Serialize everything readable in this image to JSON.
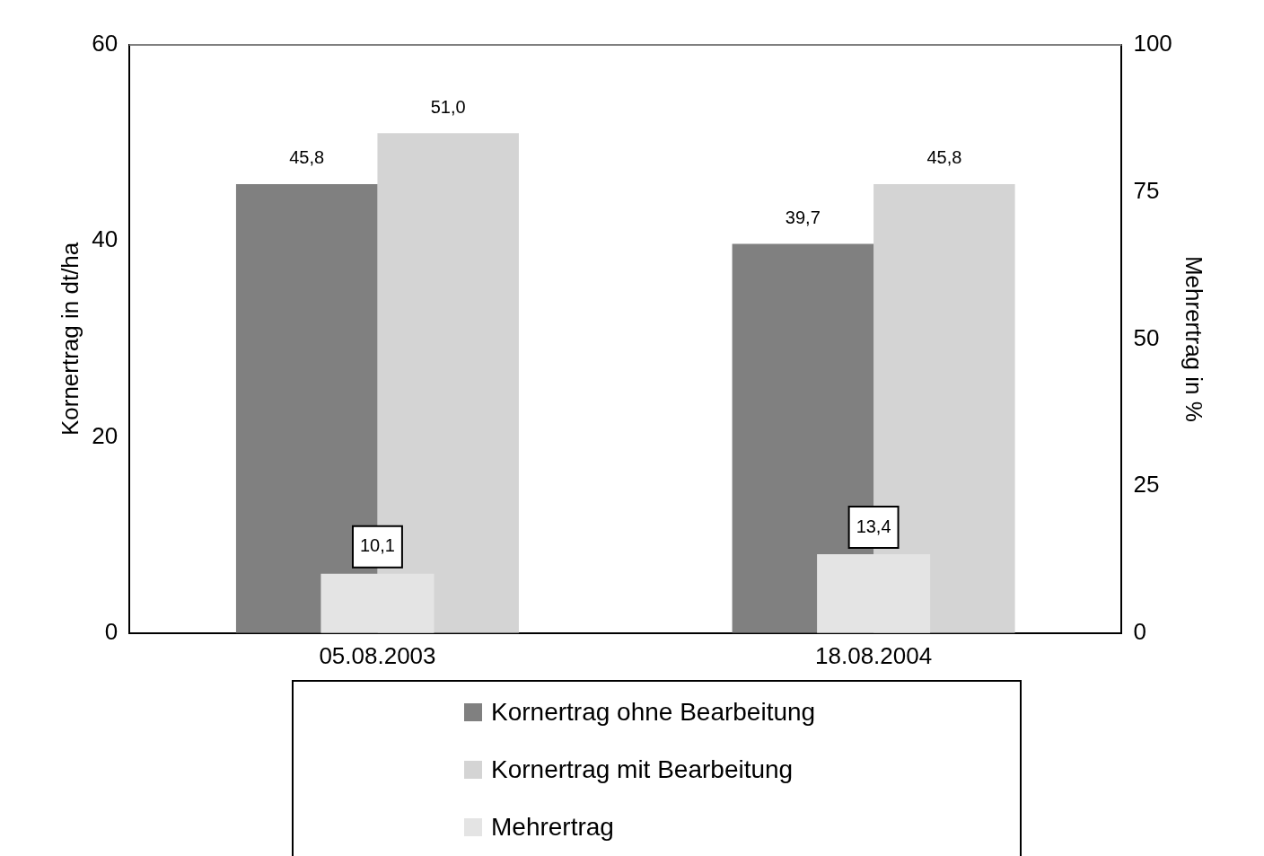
{
  "chart_data": {
    "type": "bar",
    "categories": [
      "05.08.2003",
      "18.08.2004"
    ],
    "ylabel": "Kornertrag in dt/ha",
    "y2label": "Mehrertrag in %",
    "ylim": [
      0,
      60
    ],
    "yticks": [
      0,
      20,
      40,
      60
    ],
    "y2lim": [
      0,
      100
    ],
    "y2ticks": [
      0,
      25,
      50,
      75,
      100
    ],
    "grid": false,
    "legend": "bottom",
    "series": [
      {
        "name": "Kornertrag ohne Bearbeitung",
        "color": "#808080",
        "values": [
          45.8,
          39.7
        ],
        "value_labels": [
          "45,8",
          "39,7"
        ]
      },
      {
        "name": "Kornertrag mit Bearbeitung",
        "color": "#d4d4d4",
        "values": [
          51.0,
          45.8
        ],
        "value_labels": [
          "51,0",
          "45,8"
        ]
      },
      {
        "name": "Mehrertrag",
        "color": "#e4e4e4",
        "values": [
          10.1,
          13.4
        ],
        "axis": "y2",
        "value_labels": [
          "10,1",
          "13,4"
        ]
      }
    ]
  }
}
